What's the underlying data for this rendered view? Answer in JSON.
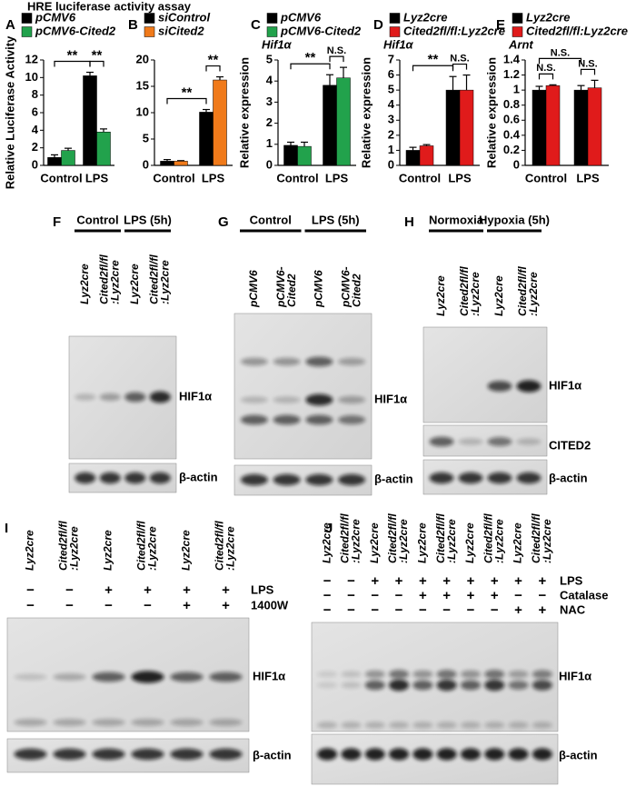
{
  "chart_data": [
    {
      "type": "bar",
      "panel": "A",
      "title": "HRE luciferase activity assay",
      "ylabel": "Relative  Luciferase Activity",
      "categories": [
        "Control",
        "LPS"
      ],
      "series": [
        {
          "name": "pCMV6",
          "color": "#000000",
          "values": [
            0.9,
            10.2
          ],
          "errors": [
            0.3,
            0.4
          ]
        },
        {
          "name": "pCMV6-Cited2",
          "color": "#22a24c",
          "values": [
            1.7,
            3.8
          ],
          "errors": [
            0.25,
            0.35
          ]
        }
      ],
      "ylim": [
        0,
        12
      ],
      "yticks": [
        0,
        2,
        4,
        6,
        8,
        10,
        12
      ],
      "annotations": [
        "**",
        "**"
      ]
    },
    {
      "type": "bar",
      "panel": "B",
      "categories": [
        "Control",
        "LPS"
      ],
      "series": [
        {
          "name": "siControl",
          "color": "#000000",
          "values": [
            0.8,
            10.1
          ],
          "errors": [
            0.3,
            0.5
          ]
        },
        {
          "name": "siCited2",
          "color": "#f07a1a",
          "values": [
            0.8,
            16.2
          ],
          "errors": [
            0.1,
            0.6
          ]
        }
      ],
      "ylim": [
        0,
        20
      ],
      "yticks": [
        0,
        5,
        10,
        15,
        20
      ],
      "annotations": [
        "**",
        "**"
      ]
    },
    {
      "type": "bar",
      "panel": "C",
      "ylabel": "Relative expression",
      "subtitle": "Hif1α",
      "categories": [
        "Control",
        "LPS"
      ],
      "series": [
        {
          "name": "pCMV6",
          "color": "#000000",
          "values": [
            0.95,
            3.8
          ],
          "errors": [
            0.15,
            0.5
          ]
        },
        {
          "name": "pCMV6-Cited2",
          "color": "#22a24c",
          "values": [
            0.9,
            4.15
          ],
          "errors": [
            0.2,
            0.5
          ]
        }
      ],
      "ylim": [
        0,
        5
      ],
      "yticks": [
        0,
        1,
        2,
        3,
        4,
        5
      ],
      "annotations": [
        "**",
        "N.S."
      ]
    },
    {
      "type": "bar",
      "panel": "D",
      "ylabel": "Relative expression",
      "subtitle": "Hif1α",
      "categories": [
        "Control",
        "LPS"
      ],
      "series": [
        {
          "name": "Lyz2cre",
          "color": "#000000",
          "values": [
            1.0,
            5.0
          ],
          "errors": [
            0.2,
            0.9
          ]
        },
        {
          "name": "Cited2fl/fl:Lyz2cre",
          "color": "#e01b1b",
          "values": [
            1.3,
            5.0
          ],
          "errors": [
            0.08,
            1.0
          ]
        }
      ],
      "ylim": [
        0,
        7
      ],
      "yticks": [
        0,
        1,
        2,
        3,
        4,
        5,
        6,
        7
      ],
      "annotations": [
        "**",
        "N.S."
      ]
    },
    {
      "type": "bar",
      "panel": "E",
      "ylabel": "Relative expression",
      "subtitle": "Arnt",
      "categories": [
        "Control",
        "LPS"
      ],
      "series": [
        {
          "name": "Lyz2cre",
          "color": "#000000",
          "values": [
            1.0,
            1.0
          ],
          "errors": [
            0.05,
            0.06
          ]
        },
        {
          "name": "Cited2fl/fl:Lyz2cre",
          "color": "#e01b1b",
          "values": [
            1.06,
            1.03
          ],
          "errors": [
            0.01,
            0.1
          ]
        }
      ],
      "ylim": [
        0,
        1.4
      ],
      "yticks": [
        0,
        0.2,
        0.4,
        0.6,
        0.8,
        1,
        1.2,
        1.4
      ],
      "annotations": [
        "N.S.",
        "N.S.",
        "N.S."
      ]
    }
  ],
  "blots": [
    {
      "panel": "F",
      "groups": [
        "Control",
        "LPS (5h)"
      ],
      "lanes": [
        [
          "Lyz2cre"
        ],
        [
          "Cited2fl/fl",
          ":Lyz2cre"
        ],
        [
          "Lyz2cre"
        ],
        [
          "Cited2fl/fl",
          ":Lyz2cre"
        ]
      ],
      "bands": [
        "HIF1α",
        "β-actin"
      ]
    },
    {
      "panel": "G",
      "groups": [
        "Control",
        "LPS (5h)"
      ],
      "lanes": [
        [
          "pCMV6"
        ],
        [
          "pCMV6-",
          "Cited2"
        ],
        [
          "pCMV6"
        ],
        [
          "pCMV6-",
          "Cited2"
        ]
      ],
      "bands": [
        "HIF1α",
        "β-actin"
      ]
    },
    {
      "panel": "H",
      "groups": [
        "Normoxia",
        "Hypoxia (5h)"
      ],
      "lanes": [
        [
          "Lyz2cre"
        ],
        [
          "Cited2fl/fl",
          ":Lyz2cre"
        ],
        [
          "Lyz2cre"
        ],
        [
          "Cited2fl/fl",
          ":Lyz2cre"
        ]
      ],
      "bands": [
        "HIF1α",
        "CITED2",
        "β-actin"
      ]
    },
    {
      "panel": "I",
      "lanes": [
        [
          "Lyz2cre"
        ],
        [
          "Cited2fl/fl",
          ":Lyz2cre"
        ],
        [
          "Lyz2cre"
        ],
        [
          "Cited2fl/fl",
          ":Lyz2cre"
        ],
        [
          "Lyz2cre"
        ],
        [
          "Cited2fl/fl",
          ":Lyz2cre"
        ]
      ],
      "treatments": [
        {
          "name": "LPS",
          "signs": [
            "−",
            "−",
            "+",
            "+",
            "+",
            "+"
          ]
        },
        {
          "name": "1400W",
          "signs": [
            "−",
            "−",
            "−",
            "−",
            "+",
            "+"
          ]
        }
      ],
      "bands": [
        "HIF1α",
        "β-actin"
      ]
    },
    {
      "panel": "J",
      "lanes": [
        [
          "Lyz2cre"
        ],
        [
          "Cited2fl/fl",
          ":Lyz2cre"
        ],
        [
          "Lyz2cre"
        ],
        [
          "Cited2fl/fl",
          ":Lyz2cre"
        ],
        [
          "Lyz2cre"
        ],
        [
          "Cited2fl/fl",
          ":Lyz2cre"
        ],
        [
          "Lyz2cre"
        ],
        [
          "Cited2fl/fl",
          ":Lyz2cre"
        ],
        [
          "Lyz2cre"
        ],
        [
          "Cited2fl/fl",
          ":Lyz2cre"
        ]
      ],
      "treatments": [
        {
          "name": "LPS",
          "signs": [
            "−",
            "−",
            "+",
            "+",
            "+",
            "+",
            "+",
            "+",
            "+",
            "+"
          ]
        },
        {
          "name": "Catalase",
          "signs": [
            "−",
            "−",
            "−",
            "−",
            "+",
            "+",
            "+",
            "+",
            "−",
            "−"
          ]
        },
        {
          "name": "NAC",
          "signs": [
            "−",
            "−",
            "−",
            "−",
            "−",
            "−",
            "−",
            "−",
            "+",
            "+"
          ]
        }
      ],
      "bands": [
        "HIF1α",
        "β-actin"
      ]
    }
  ]
}
